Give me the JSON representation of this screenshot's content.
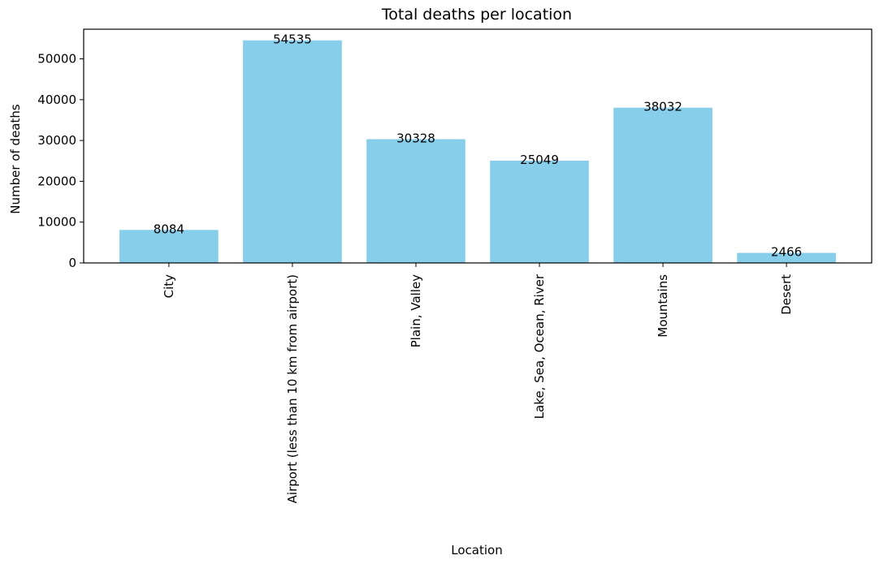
{
  "chart_data": {
    "type": "bar",
    "title": "Total deaths per location",
    "xlabel": "Location",
    "ylabel": "Number of deaths",
    "categories": [
      "City",
      "Airport (less than 10 km from airport)",
      "Plain, Valley",
      "Lake, Sea, Ocean, River",
      "Mountains",
      "Desert"
    ],
    "values": [
      8084,
      54535,
      30328,
      25049,
      38032,
      2466
    ],
    "data_labels": [
      "8084",
      "54535",
      "30328",
      "25049",
      "38032",
      "2466"
    ],
    "yticks": [
      0,
      10000,
      20000,
      30000,
      40000,
      50000
    ],
    "ytick_labels": [
      "0",
      "10000",
      "20000",
      "30000",
      "40000",
      "50000"
    ],
    "ylim": [
      0,
      57262
    ],
    "bar_color": "#87ceeb",
    "grid": false,
    "legend": "none"
  }
}
